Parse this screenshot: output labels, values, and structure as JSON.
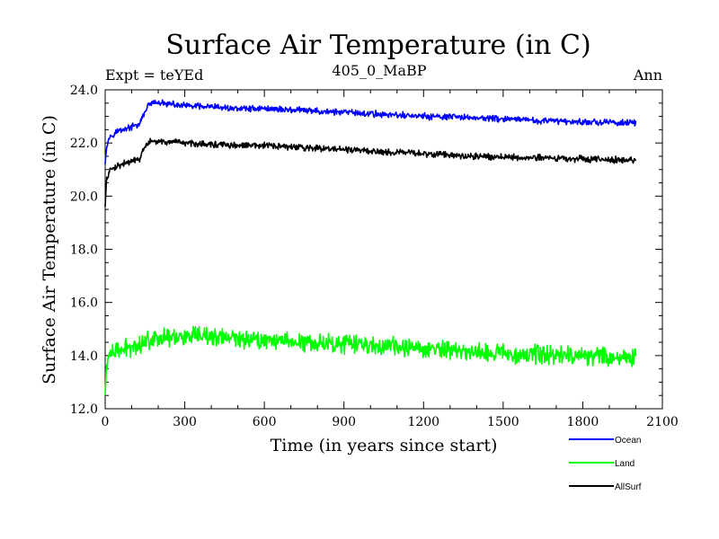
{
  "chart_data": {
    "type": "line",
    "title": "Surface Air Temperature (in C)",
    "subtitle_left": "Expt = teYEd",
    "subtitle_center": "405_0_MaBP",
    "subtitle_right": "Ann",
    "xlabel": "Time (in years since start)",
    "ylabel": "Surface Air Temperature (in C)",
    "xlim": [
      0,
      2100
    ],
    "ylim": [
      12.0,
      24.0
    ],
    "xticks": [
      0,
      300,
      600,
      900,
      1200,
      1500,
      1800,
      2100
    ],
    "yticks": [
      12.0,
      14.0,
      16.0,
      18.0,
      20.0,
      22.0,
      24.0
    ],
    "xtick_labels": [
      "0",
      "300",
      "600",
      "900",
      "1200",
      "1500",
      "1800",
      "2100"
    ],
    "ytick_labels": [
      "12.0",
      "14.0",
      "16.0",
      "18.0",
      "20.0",
      "22.0",
      "24.0"
    ],
    "legend_position": "bottom-right",
    "series": [
      {
        "name": "Ocean",
        "color": "#0000ff",
        "noise": 0.12,
        "x": [
          0,
          5,
          15,
          30,
          60,
          100,
          130,
          150,
          170,
          200,
          300,
          400,
          500,
          600,
          700,
          800,
          900,
          1000,
          1200,
          1400,
          1600,
          1800,
          2000
        ],
        "y": [
          21.2,
          21.9,
          22.2,
          22.35,
          22.5,
          22.6,
          22.7,
          23.2,
          23.5,
          23.5,
          23.4,
          23.35,
          23.3,
          23.3,
          23.25,
          23.2,
          23.15,
          23.1,
          23.0,
          22.95,
          22.85,
          22.8,
          22.75
        ]
      },
      {
        "name": "Land",
        "color": "#00ff00",
        "noise": 0.35,
        "x": [
          0,
          5,
          15,
          30,
          60,
          100,
          130,
          150,
          170,
          200,
          300,
          400,
          500,
          600,
          700,
          800,
          900,
          1000,
          1200,
          1400,
          1600,
          1800,
          2000
        ],
        "y": [
          12.5,
          13.6,
          14.0,
          14.1,
          14.2,
          14.35,
          14.4,
          14.55,
          14.65,
          14.7,
          14.7,
          14.7,
          14.65,
          14.6,
          14.55,
          14.5,
          14.45,
          14.4,
          14.25,
          14.15,
          14.05,
          14.0,
          13.9
        ]
      },
      {
        "name": "AllSurf",
        "color": "#000000",
        "noise": 0.12,
        "x": [
          0,
          5,
          15,
          30,
          60,
          100,
          130,
          150,
          170,
          200,
          300,
          400,
          500,
          600,
          700,
          800,
          900,
          1000,
          1200,
          1400,
          1600,
          1800,
          2000
        ],
        "y": [
          19.6,
          20.6,
          20.9,
          21.05,
          21.2,
          21.3,
          21.4,
          21.85,
          22.05,
          22.05,
          22.0,
          21.95,
          21.9,
          21.9,
          21.85,
          21.8,
          21.75,
          21.7,
          21.6,
          21.5,
          21.45,
          21.4,
          21.35
        ]
      }
    ]
  }
}
